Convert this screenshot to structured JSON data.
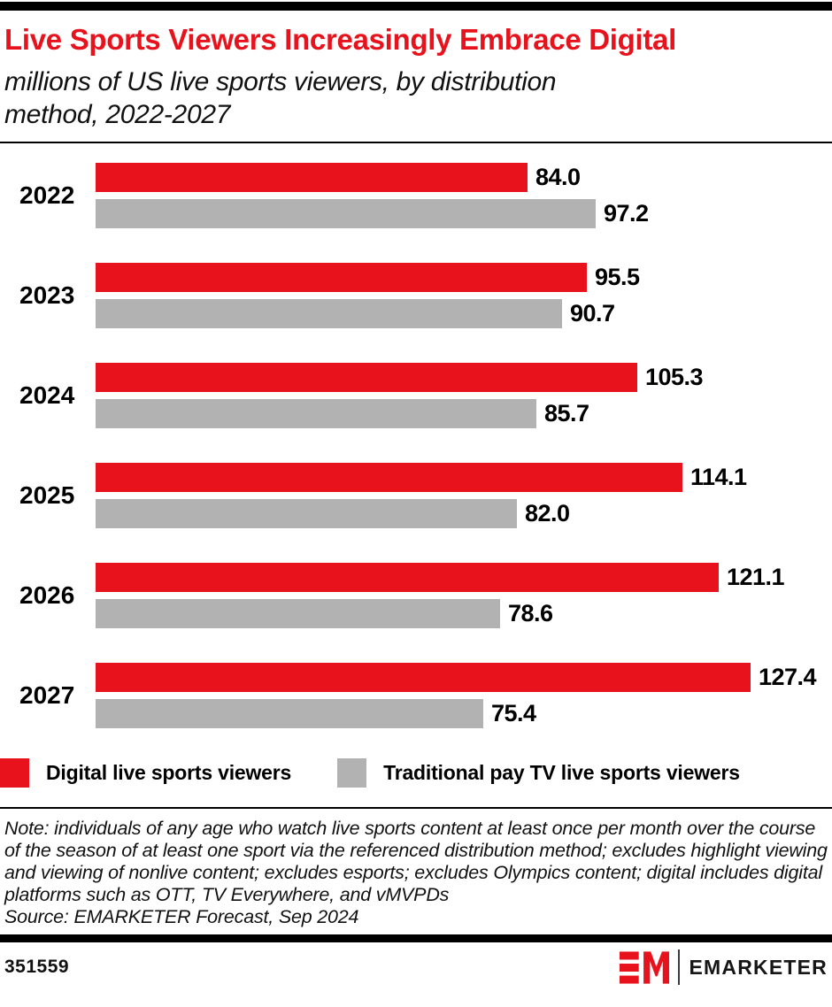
{
  "header": {
    "title": "Live Sports Viewers Increasingly Embrace Digital",
    "subtitle": "millions of US live sports viewers, by distribution method, 2022-2027"
  },
  "chart_data": {
    "type": "bar",
    "orientation": "horizontal",
    "title": "Live Sports Viewers Increasingly Embrace Digital",
    "subtitle": "millions of US live sports viewers, by distribution method, 2022-2027",
    "unit": "millions",
    "categories": [
      "2022",
      "2023",
      "2024",
      "2025",
      "2026",
      "2027"
    ],
    "series": [
      {
        "name": "Digital live sports viewers",
        "color": "#e8121d",
        "values": [
          84.0,
          95.5,
          105.3,
          114.1,
          121.1,
          127.4
        ]
      },
      {
        "name": "Traditional pay TV live sports viewers",
        "color": "#b2b2b2",
        "values": [
          97.2,
          90.7,
          85.7,
          82.0,
          78.6,
          75.4
        ]
      }
    ],
    "value_labels": "end_of_bar_one_decimal",
    "xlim": [
      0,
      130
    ],
    "grid": false,
    "legend_position": "bottom"
  },
  "colors": {
    "accent_red": "#e8121d",
    "bar_gray": "#b2b2b2",
    "rule_black": "#000000"
  },
  "footnotes": {
    "note": "Note: individuals of any age who watch live sports content at least once per month over the course of the season of at least one sport via the referenced distribution method; excludes highlight viewing and viewing of nonlive content; excludes esports; excludes Olympics content; digital includes digital platforms such as OTT, TV Everywhere, and vMVPDs",
    "source": "Source: EMARKETER Forecast, Sep 2024"
  },
  "footer": {
    "chart_id": "351559",
    "logo_monogram": "EM",
    "brand_name": "EMARKETER"
  }
}
